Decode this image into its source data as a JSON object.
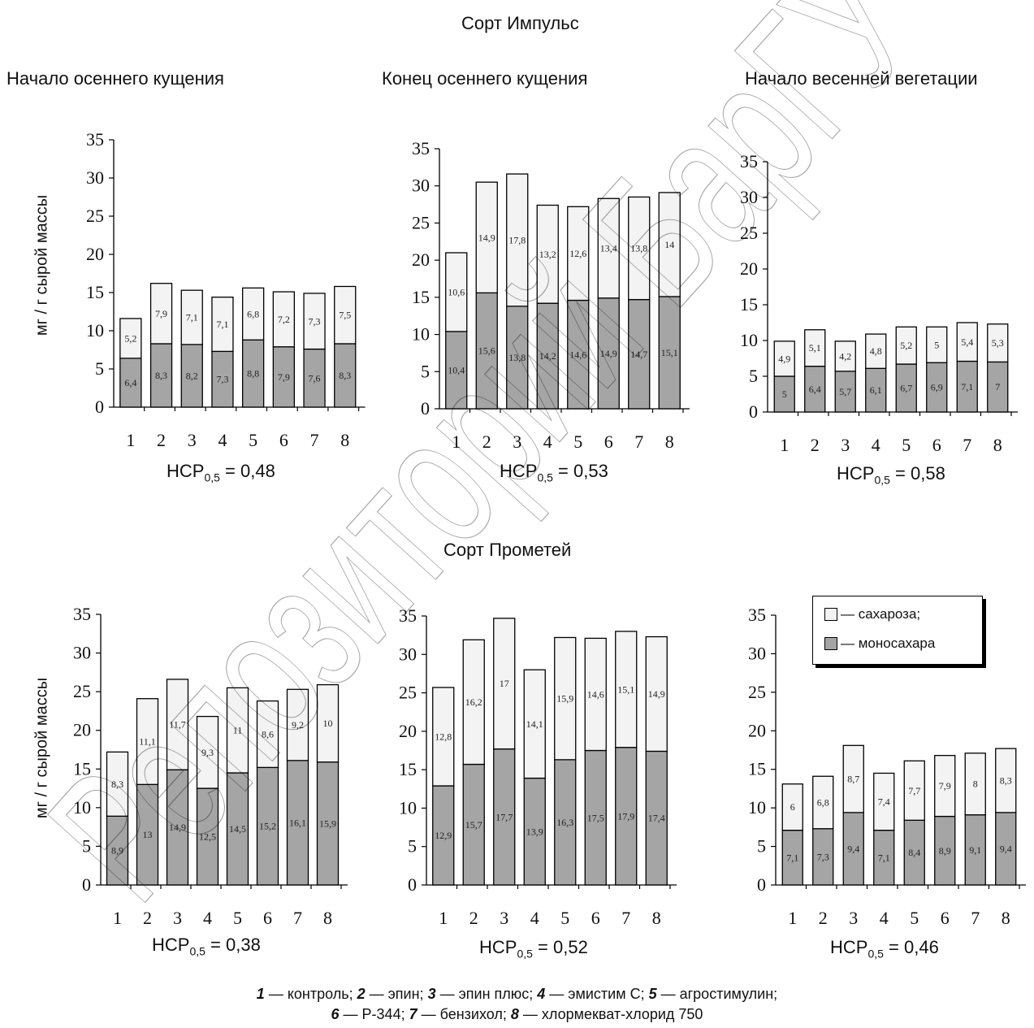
{
  "sections": [
    {
      "title": "Сорт Импульс"
    },
    {
      "title": "Сорт Прометей"
    }
  ],
  "ylabel": "мг / г сырой массы",
  "colors": {
    "sucrose": "#f3f3f3",
    "mono": "#a5a5a5",
    "edge": "#000000"
  },
  "legend": {
    "sucrose": "— сахароза;",
    "mono": "— моносахара"
  },
  "caption": {
    "line1": [
      {
        "num": "1",
        "text": " — контроль; "
      },
      {
        "num": "2",
        "text": " — эпин; "
      },
      {
        "num": "3",
        "text": " — эпин плюс; "
      },
      {
        "num": "4",
        "text": " — эмистим С; "
      },
      {
        "num": "5",
        "text": " — агростимулин;"
      }
    ],
    "line2": [
      {
        "num": "6",
        "text": " — Р-344; "
      },
      {
        "num": "7",
        "text": " — бензихол; "
      },
      {
        "num": "8",
        "text": " — хлормекват-хлорид 750"
      }
    ]
  },
  "watermark": "Репозиторий БарГУ",
  "chart_data": [
    {
      "type": "bar",
      "stacked": true,
      "title": "Начало осеннего кущения",
      "ylabel": "мг / г сырой массы",
      "categories": [
        "1",
        "2",
        "3",
        "4",
        "5",
        "6",
        "7",
        "8"
      ],
      "ylim": [
        0,
        35
      ],
      "yticks": [
        0,
        5,
        10,
        15,
        20,
        25,
        30,
        35
      ],
      "nsr_label": "НСР",
      "nsr_sub": "0,5",
      "nsr_value": " = 0,48",
      "series": [
        {
          "name": "моносахара",
          "values": [
            6.4,
            8.3,
            8.2,
            7.3,
            8.8,
            7.9,
            7.6,
            8.3
          ],
          "labels": [
            "6,4",
            "8,3",
            "8,2",
            "7,3",
            "8,8",
            "7,9",
            "7,6",
            "8,3"
          ]
        },
        {
          "name": "сахароза",
          "values": [
            5.2,
            7.9,
            7.1,
            7.1,
            6.8,
            7.2,
            7.3,
            7.5
          ],
          "labels": [
            "5,2",
            "7,9",
            "7,1",
            "7,1",
            "6,8",
            "7,2",
            "7,3",
            "7,5"
          ]
        }
      ]
    },
    {
      "type": "bar",
      "stacked": true,
      "title": "Конец осеннего кущения",
      "ylabel": "",
      "categories": [
        "1",
        "2",
        "3",
        "4",
        "5",
        "6",
        "7",
        "8"
      ],
      "ylim": [
        0,
        35
      ],
      "yticks": [
        0,
        5,
        10,
        15,
        20,
        25,
        30,
        35
      ],
      "nsr_label": "НСР",
      "nsr_sub": "0,5",
      "nsr_value": " = 0,53",
      "series": [
        {
          "name": "моносахара",
          "values": [
            10.4,
            15.6,
            13.8,
            14.2,
            14.6,
            14.9,
            14.7,
            15.1
          ],
          "labels": [
            "10,4",
            "15,6",
            "13,8",
            "14,2",
            "14,6",
            "14,9",
            "14,7",
            "15,1"
          ]
        },
        {
          "name": "сахароза",
          "values": [
            10.6,
            14.9,
            17.8,
            13.2,
            12.6,
            13.4,
            13.8,
            14
          ],
          "labels": [
            "10,6",
            "14,9",
            "17,8",
            "13,2",
            "12,6",
            "13,4",
            "13,8",
            "14"
          ]
        }
      ]
    },
    {
      "type": "bar",
      "stacked": true,
      "title": "Начало весенней вегетации",
      "ylabel": "",
      "categories": [
        "1",
        "2",
        "3",
        "4",
        "5",
        "6",
        "7",
        "8"
      ],
      "ylim": [
        0,
        35
      ],
      "yticks": [
        0,
        5,
        10,
        15,
        20,
        25,
        30,
        35
      ],
      "nsr_label": "НСР",
      "nsr_sub": "0,5",
      "nsr_value": " = 0,58",
      "series": [
        {
          "name": "моносахара",
          "values": [
            5,
            6.4,
            5.7,
            6.1,
            6.7,
            6.9,
            7.1,
            7
          ],
          "labels": [
            "5",
            "6,4",
            "5,7",
            "6,1",
            "6,7",
            "6,9",
            "7,1",
            "7"
          ]
        },
        {
          "name": "сахароза",
          "values": [
            4.9,
            5.1,
            4.2,
            4.8,
            5.2,
            5,
            5.4,
            5.3
          ],
          "labels": [
            "4,9",
            "5,1",
            "4,2",
            "4,8",
            "5,2",
            "5",
            "5,4",
            "5,3"
          ]
        }
      ]
    },
    {
      "type": "bar",
      "stacked": true,
      "title": "",
      "ylabel": "мг / г сырой массы",
      "categories": [
        "1",
        "2",
        "3",
        "4",
        "5",
        "6",
        "7",
        "8"
      ],
      "ylim": [
        0,
        35
      ],
      "yticks": [
        0,
        5,
        10,
        15,
        20,
        25,
        30,
        35
      ],
      "nsr_label": "НСР",
      "nsr_sub": "0,5",
      "nsr_value": " = 0,38",
      "series": [
        {
          "name": "моносахара",
          "values": [
            8.9,
            13,
            14.9,
            12.5,
            14.5,
            15.2,
            16.1,
            15.9
          ],
          "labels": [
            "8,9",
            "13",
            "14,9",
            "12,5",
            "14,5",
            "15,2",
            "16,1",
            "15,9"
          ]
        },
        {
          "name": "сахароза",
          "values": [
            8.3,
            11.1,
            11.7,
            9.3,
            11,
            8.6,
            9.2,
            10
          ],
          "labels": [
            "8,3",
            "11,1",
            "11,7",
            "9,3",
            "11",
            "8,6",
            "9,2",
            "10"
          ]
        }
      ]
    },
    {
      "type": "bar",
      "stacked": true,
      "title": "",
      "ylabel": "",
      "categories": [
        "1",
        "2",
        "3",
        "4",
        "5",
        "6",
        "7",
        "8"
      ],
      "ylim": [
        0,
        35
      ],
      "yticks": [
        0,
        5,
        10,
        15,
        20,
        25,
        30,
        35
      ],
      "nsr_label": "НСР",
      "nsr_sub": "0,5",
      "nsr_value": " = 0,52",
      "series": [
        {
          "name": "моносахара",
          "values": [
            12.9,
            15.7,
            17.7,
            13.9,
            16.3,
            17.5,
            17.9,
            17.4
          ],
          "labels": [
            "12,9",
            "15,7",
            "17,7",
            "13,9",
            "16,3",
            "17,5",
            "17,9",
            "17,4"
          ]
        },
        {
          "name": "сахароза",
          "values": [
            12.8,
            16.2,
            17,
            14.1,
            15.9,
            14.6,
            15.1,
            14.9
          ],
          "labels": [
            "12,8",
            "16,2",
            "17",
            "14,1",
            "15,9",
            "14,6",
            "15,1",
            "14,9"
          ]
        }
      ]
    },
    {
      "type": "bar",
      "stacked": true,
      "title": "",
      "ylabel": "",
      "categories": [
        "1",
        "2",
        "3",
        "4",
        "5",
        "6",
        "7",
        "8"
      ],
      "ylim": [
        0,
        35
      ],
      "yticks": [
        0,
        5,
        10,
        15,
        20,
        25,
        30,
        35
      ],
      "nsr_label": "НСР",
      "nsr_sub": "0,5",
      "nsr_value": " = 0,46",
      "series": [
        {
          "name": "моносахара",
          "values": [
            7.1,
            7.3,
            9.4,
            7.1,
            8.4,
            8.9,
            9.1,
            9.4
          ],
          "labels": [
            "7,1",
            "7,3",
            "9,4",
            "7,1",
            "8,4",
            "8,9",
            "9,1",
            "9,4"
          ]
        },
        {
          "name": "сахароза",
          "values": [
            6,
            6.8,
            8.7,
            7.4,
            7.7,
            7.9,
            8,
            8.3
          ],
          "labels": [
            "6",
            "6,8",
            "8,7",
            "7,4",
            "7,7",
            "7,9",
            "8",
            "8,3"
          ]
        }
      ]
    }
  ]
}
